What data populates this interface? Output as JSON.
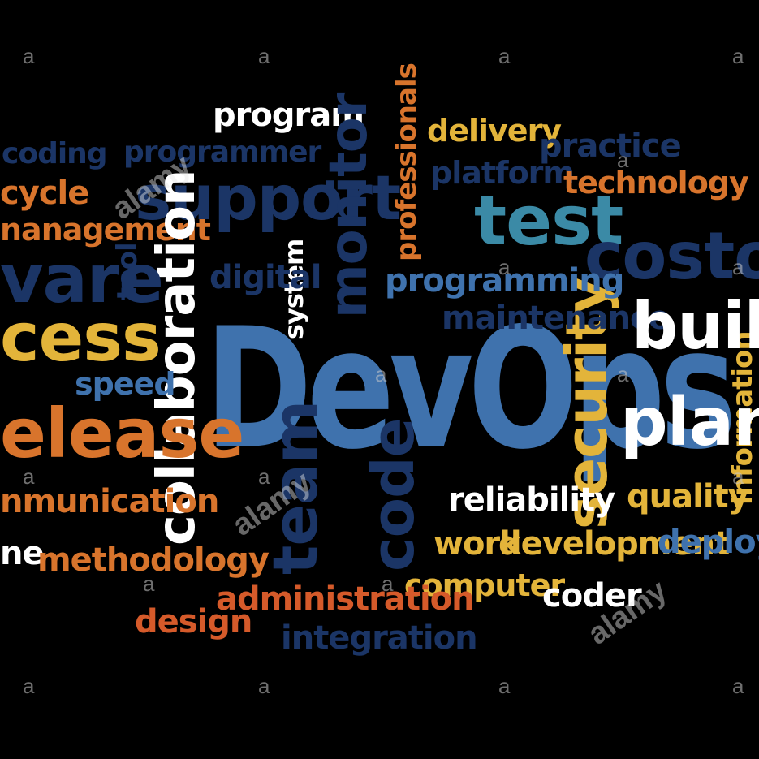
{
  "colors": {
    "background": "#000000",
    "white": "#ffffff",
    "navy": "#1b3566",
    "steel_blue": "#3f72ad",
    "teal": "#3b8aa6",
    "gold": "#e3b43a",
    "orange": "#d8742c",
    "red_orange": "#d55a2a"
  },
  "words": {
    "devops": "DevOps",
    "program": "program",
    "coding": "coding",
    "programmer": "programmer",
    "cycle": "cycle",
    "management": "nanagement",
    "support": "support",
    "monitor": "monitor",
    "professionals": "professionals",
    "delivery": "delivery",
    "practice": "practice",
    "platform": "platform",
    "technology": "technology",
    "test": "test",
    "costomer": "costome",
    "ware": "vare",
    "tool": "tool",
    "digital": "digital",
    "system": "system",
    "programming": "programming",
    "maintenance": "maintenance",
    "process": "cess",
    "collaboration": "collaboration",
    "build": "build",
    "speed": "speed",
    "security": "security",
    "release": "elease",
    "plan": "plan",
    "information": "information",
    "communication": "nmunication",
    "team": "team",
    "code": "code",
    "reliability": "reliability",
    "quality": "quality",
    "line": "ne",
    "methodology": "methodology",
    "work": "work",
    "development": "development",
    "deploy": "deploy",
    "computer": "computer",
    "administration": "administration",
    "coder": "coder",
    "design": "design",
    "integration": "integration"
  },
  "watermark": {
    "letter": "a",
    "logo": "alamy"
  }
}
